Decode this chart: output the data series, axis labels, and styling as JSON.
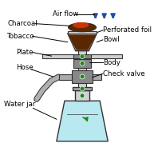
{
  "background_color": "#ffffff",
  "labels": {
    "air_flow": "Air flow",
    "charcoal": "Charcoal",
    "perforated_foil": "Perforated foil",
    "tobacco": "Tobacco",
    "bowl": "Bowl",
    "plate": "Plate",
    "hose": "Hose",
    "body": "Body",
    "check_valve": "Check valve",
    "water_jar": "Water jar"
  },
  "colors": {
    "water": "#b8e8f0",
    "charcoal_dark": "#5a2800",
    "charcoal_red": "#cc3300",
    "body_light": "#d0d0d0",
    "body_mid": "#aaaaaa",
    "body_dark": "#888888",
    "green": "#1a8a1a",
    "arrow_blue": "#1a4faa",
    "foil": "#c8c8c8",
    "outline": "#333333",
    "hose_tube": "#b0b0b0",
    "plate_gray": "#c0c0c0"
  },
  "figsize": [
    1.98,
    1.89
  ],
  "dpi": 100
}
